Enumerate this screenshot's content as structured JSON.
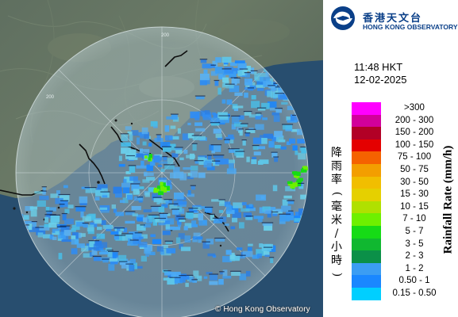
{
  "header": {
    "logo_icon": "hko-swirl-logo",
    "org_name_zh": "香港天文台",
    "org_name_en": "HONG KONG OBSERVATORY"
  },
  "timestamp": {
    "time": "11:48 HKT",
    "date": "12-02-2025"
  },
  "map": {
    "copyright": "© Hong Kong Observatory",
    "range_ring_labels": [
      "200",
      "200"
    ]
  },
  "legend": {
    "title_zh": "降雨率(毫米/小時)",
    "title_en": "Rainfall Rate (mm/h)",
    "items": [
      {
        "label": ">300",
        "color": "#ff00ff"
      },
      {
        "label": "200 - 300",
        "color": "#d2009b"
      },
      {
        "label": "150 - 200",
        "color": "#b20026"
      },
      {
        "label": "100 - 150",
        "color": "#e40000"
      },
      {
        "label": "75 - 100",
        "color": "#f56200"
      },
      {
        "label": "50 - 75",
        "color": "#f39e00"
      },
      {
        "label": "30 - 50",
        "color": "#f1be00"
      },
      {
        "label": "15 - 30",
        "color": "#e5d000"
      },
      {
        "label": "10 - 15",
        "color": "#b0e000"
      },
      {
        "label": "7 - 10",
        "color": "#6ef000"
      },
      {
        "label": "5 - 7",
        "color": "#16db16"
      },
      {
        "label": "3 - 5",
        "color": "#10b830"
      },
      {
        "label": "2 - 3",
        "color": "#0b9048"
      },
      {
        "label": "1 - 2",
        "color": "#3b9df3"
      },
      {
        "label": "0.50 - 1",
        "color": "#1a87ff"
      },
      {
        "label": "0.15 - 0.50",
        "color": "#00cfff"
      }
    ]
  }
}
